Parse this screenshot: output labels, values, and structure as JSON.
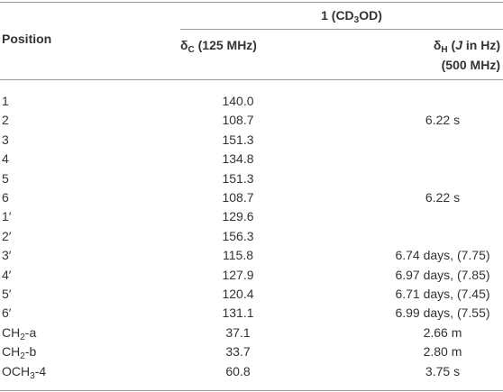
{
  "header": {
    "position": "Position",
    "group": [
      {
        "text": "1 (CD"
      },
      {
        "sub": "3"
      },
      {
        "text": "OD)"
      }
    ],
    "carbon": [
      {
        "text": "δ"
      },
      {
        "sub": "C"
      },
      {
        "text": " (125 MHz)"
      }
    ],
    "proton": [
      {
        "text": "δ"
      },
      {
        "sub": "H"
      },
      {
        "text": " ("
      },
      {
        "i": "J"
      },
      {
        "text": " in Hz)"
      }
    ],
    "proton_freq": "(500 MHz)"
  },
  "table": {
    "rows": [
      {
        "position": "1",
        "c": "140.0"
      },
      {
        "position": "2",
        "c": "108.7",
        "h": "6.22 s"
      },
      {
        "position": "3",
        "c": "151.3"
      },
      {
        "position": "4",
        "c": "134.8"
      },
      {
        "position": "5",
        "c": "151.3"
      },
      {
        "position": "6",
        "c": "108.7",
        "h": "6.22 s"
      },
      {
        "position": "1′",
        "c": "129.6"
      },
      {
        "position": "2′",
        "c": "156.3"
      },
      {
        "position": "3′",
        "c": "115.8",
        "h": "6.74 days, (7.75)"
      },
      {
        "position": "4′",
        "c": "127.9",
        "h": "6.97 days, (7.85)"
      },
      {
        "position": "5′",
        "c": "120.4",
        "h": "6.71 days, (7.45)"
      },
      {
        "position": "6′",
        "c": "131.1",
        "h": "6.99 days, (7.55)"
      },
      {
        "position": [
          {
            "text": "CH"
          },
          {
            "sub": "2"
          },
          {
            "text": "-a"
          }
        ],
        "c": "37.1",
        "h": "2.66 m"
      },
      {
        "position": [
          {
            "text": "CH"
          },
          {
            "sub": "2"
          },
          {
            "text": "-b"
          }
        ],
        "c": "33.7",
        "h": "2.80 m"
      },
      {
        "position": [
          {
            "text": "OCH"
          },
          {
            "sub": "3"
          },
          {
            "text": "-4"
          }
        ],
        "c": "60.8",
        "h": "3.75 s"
      }
    ]
  }
}
